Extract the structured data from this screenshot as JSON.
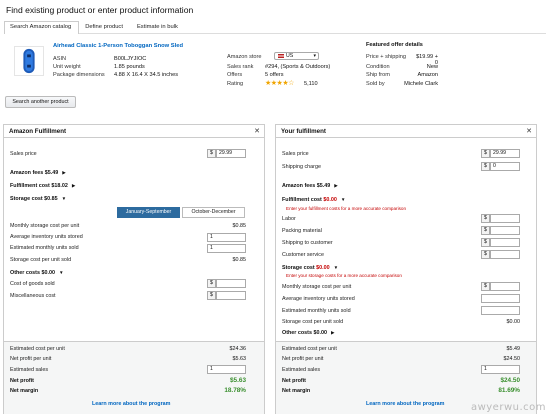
{
  "header": {
    "title": "Find existing product or enter product information"
  },
  "tabs": [
    "Search Amazon catalog",
    "Define product",
    "Estimate in bulk"
  ],
  "product": {
    "title": "Airhead Classic 1-Person Toboggan Snow Sled",
    "asin_label": "ASIN",
    "asin": "B00LJYJIOC",
    "weight_label": "Unit weight",
    "weight": "1.85 pounds",
    "dims_label": "Package dimensions",
    "dims": "4.88 X 16.4 X 34.5 inches",
    "store_label": "Amazon store",
    "store": "US",
    "rank_label": "Sales rank",
    "rank": "#294, (Sports & Outdoors)",
    "offers_label": "Offers",
    "offers": "5 offers",
    "rating_label": "Rating",
    "rating_stars": "★★★★☆",
    "rating_value": 4.5,
    "rating_count": "5,110",
    "featured_title": "Featured offer details",
    "price_label": "Price + shipping",
    "price": "$19.99 + 0",
    "condition_label": "Condition",
    "condition": "New",
    "shipfrom_label": "Ship from",
    "shipfrom": "Amazon",
    "soldby_label": "Sold by",
    "soldby": "Michele Clark",
    "search_another": "Search another product"
  },
  "left": {
    "title": "Amazon Fulfillment",
    "close": "✕",
    "sales_price_label": "Sales price",
    "dollar": "$",
    "sales_price": "29.99",
    "amazon_fees": "Amazon fees",
    "amazon_fees_val": "$5.49",
    "fulfillment_cost": "Fulfillment cost",
    "fulfillment_cost_val": "$18.02",
    "storage_cost": "Storage cost",
    "storage_cost_val": "$0.85",
    "season_on": "January-September",
    "season_off": "October-December",
    "monthly_storage_label": "Monthly storage cost per unit",
    "monthly_storage_val": "$0.85",
    "avg_inventory_label": "Average inventory units stored",
    "avg_inventory_val": "1",
    "est_monthly_label": "Estimated monthly units sold",
    "est_monthly_val": "1",
    "storage_per_unit_label": "Storage cost per unit sold",
    "storage_per_unit_val": "$0.85",
    "other_costs": "Other costs",
    "other_costs_val": "$0.00",
    "cogs_label": "Cost of goods sold",
    "misc_label": "Miscellaneous cost",
    "sum_cost_label": "Estimated cost per unit",
    "sum_cost_val": "$24.36",
    "sum_profit_label": "Net profit per unit",
    "sum_profit_val": "$5.63",
    "sum_sales_label": "Estimated sales",
    "sum_sales_val": "1",
    "net_profit_label": "Net profit",
    "net_profit_val": "$5.63",
    "net_margin_label": "Net margin",
    "net_margin_val": "18.78%",
    "learn_more": "Learn more about the program"
  },
  "right": {
    "title": "Your fulfillment",
    "close": "✕",
    "sales_price_label": "Sales price",
    "dollar": "$",
    "sales_price": "29.99",
    "shipping_label": "Shipping charge",
    "shipping_val": "0",
    "amazon_fees": "Amazon fees",
    "amazon_fees_val": "$5.49",
    "fulfillment_cost": "Fulfillment cost",
    "fulfillment_cost_val": "$0.00",
    "fulfillment_hint": "Enter your fulfillment costs for a more accurate comparison",
    "labor_label": "Labor",
    "packing_label": "Packing material",
    "ship_customer_label": "Shipping to customer",
    "cust_service_label": "Customer service",
    "storage_cost": "Storage cost",
    "storage_cost_val": "$0.00",
    "storage_hint": "Enter your storage costs for a more accurate comparison",
    "monthly_storage_label": "Monthly storage cost per unit",
    "avg_inventory_label": "Average inventory units stored",
    "est_monthly_label": "Estimated monthly units sold",
    "storage_per_unit_label": "Storage cost per unit sold",
    "storage_per_unit_val": "$0.00",
    "other_costs": "Other costs",
    "other_costs_val": "$0.00",
    "sum_cost_label": "Estimated cost per unit",
    "sum_cost_val": "$5.49",
    "sum_profit_label": "Net profit per unit",
    "sum_profit_val": "$24.50",
    "sum_sales_label": "Estimated sales",
    "sum_sales_val": "1",
    "net_profit_label": "Net profit",
    "net_profit_val": "$24.50",
    "net_margin_label": "Net margin",
    "net_margin_val": "81.69%",
    "learn_more": "Learn more about the program"
  },
  "watermark": "awyerwu.com",
  "colors": {
    "link": "#0066c0",
    "accent": "#2d6b9f",
    "profit": "#3a8f2f",
    "warning": "#c40000",
    "stars": "#f0a500"
  }
}
